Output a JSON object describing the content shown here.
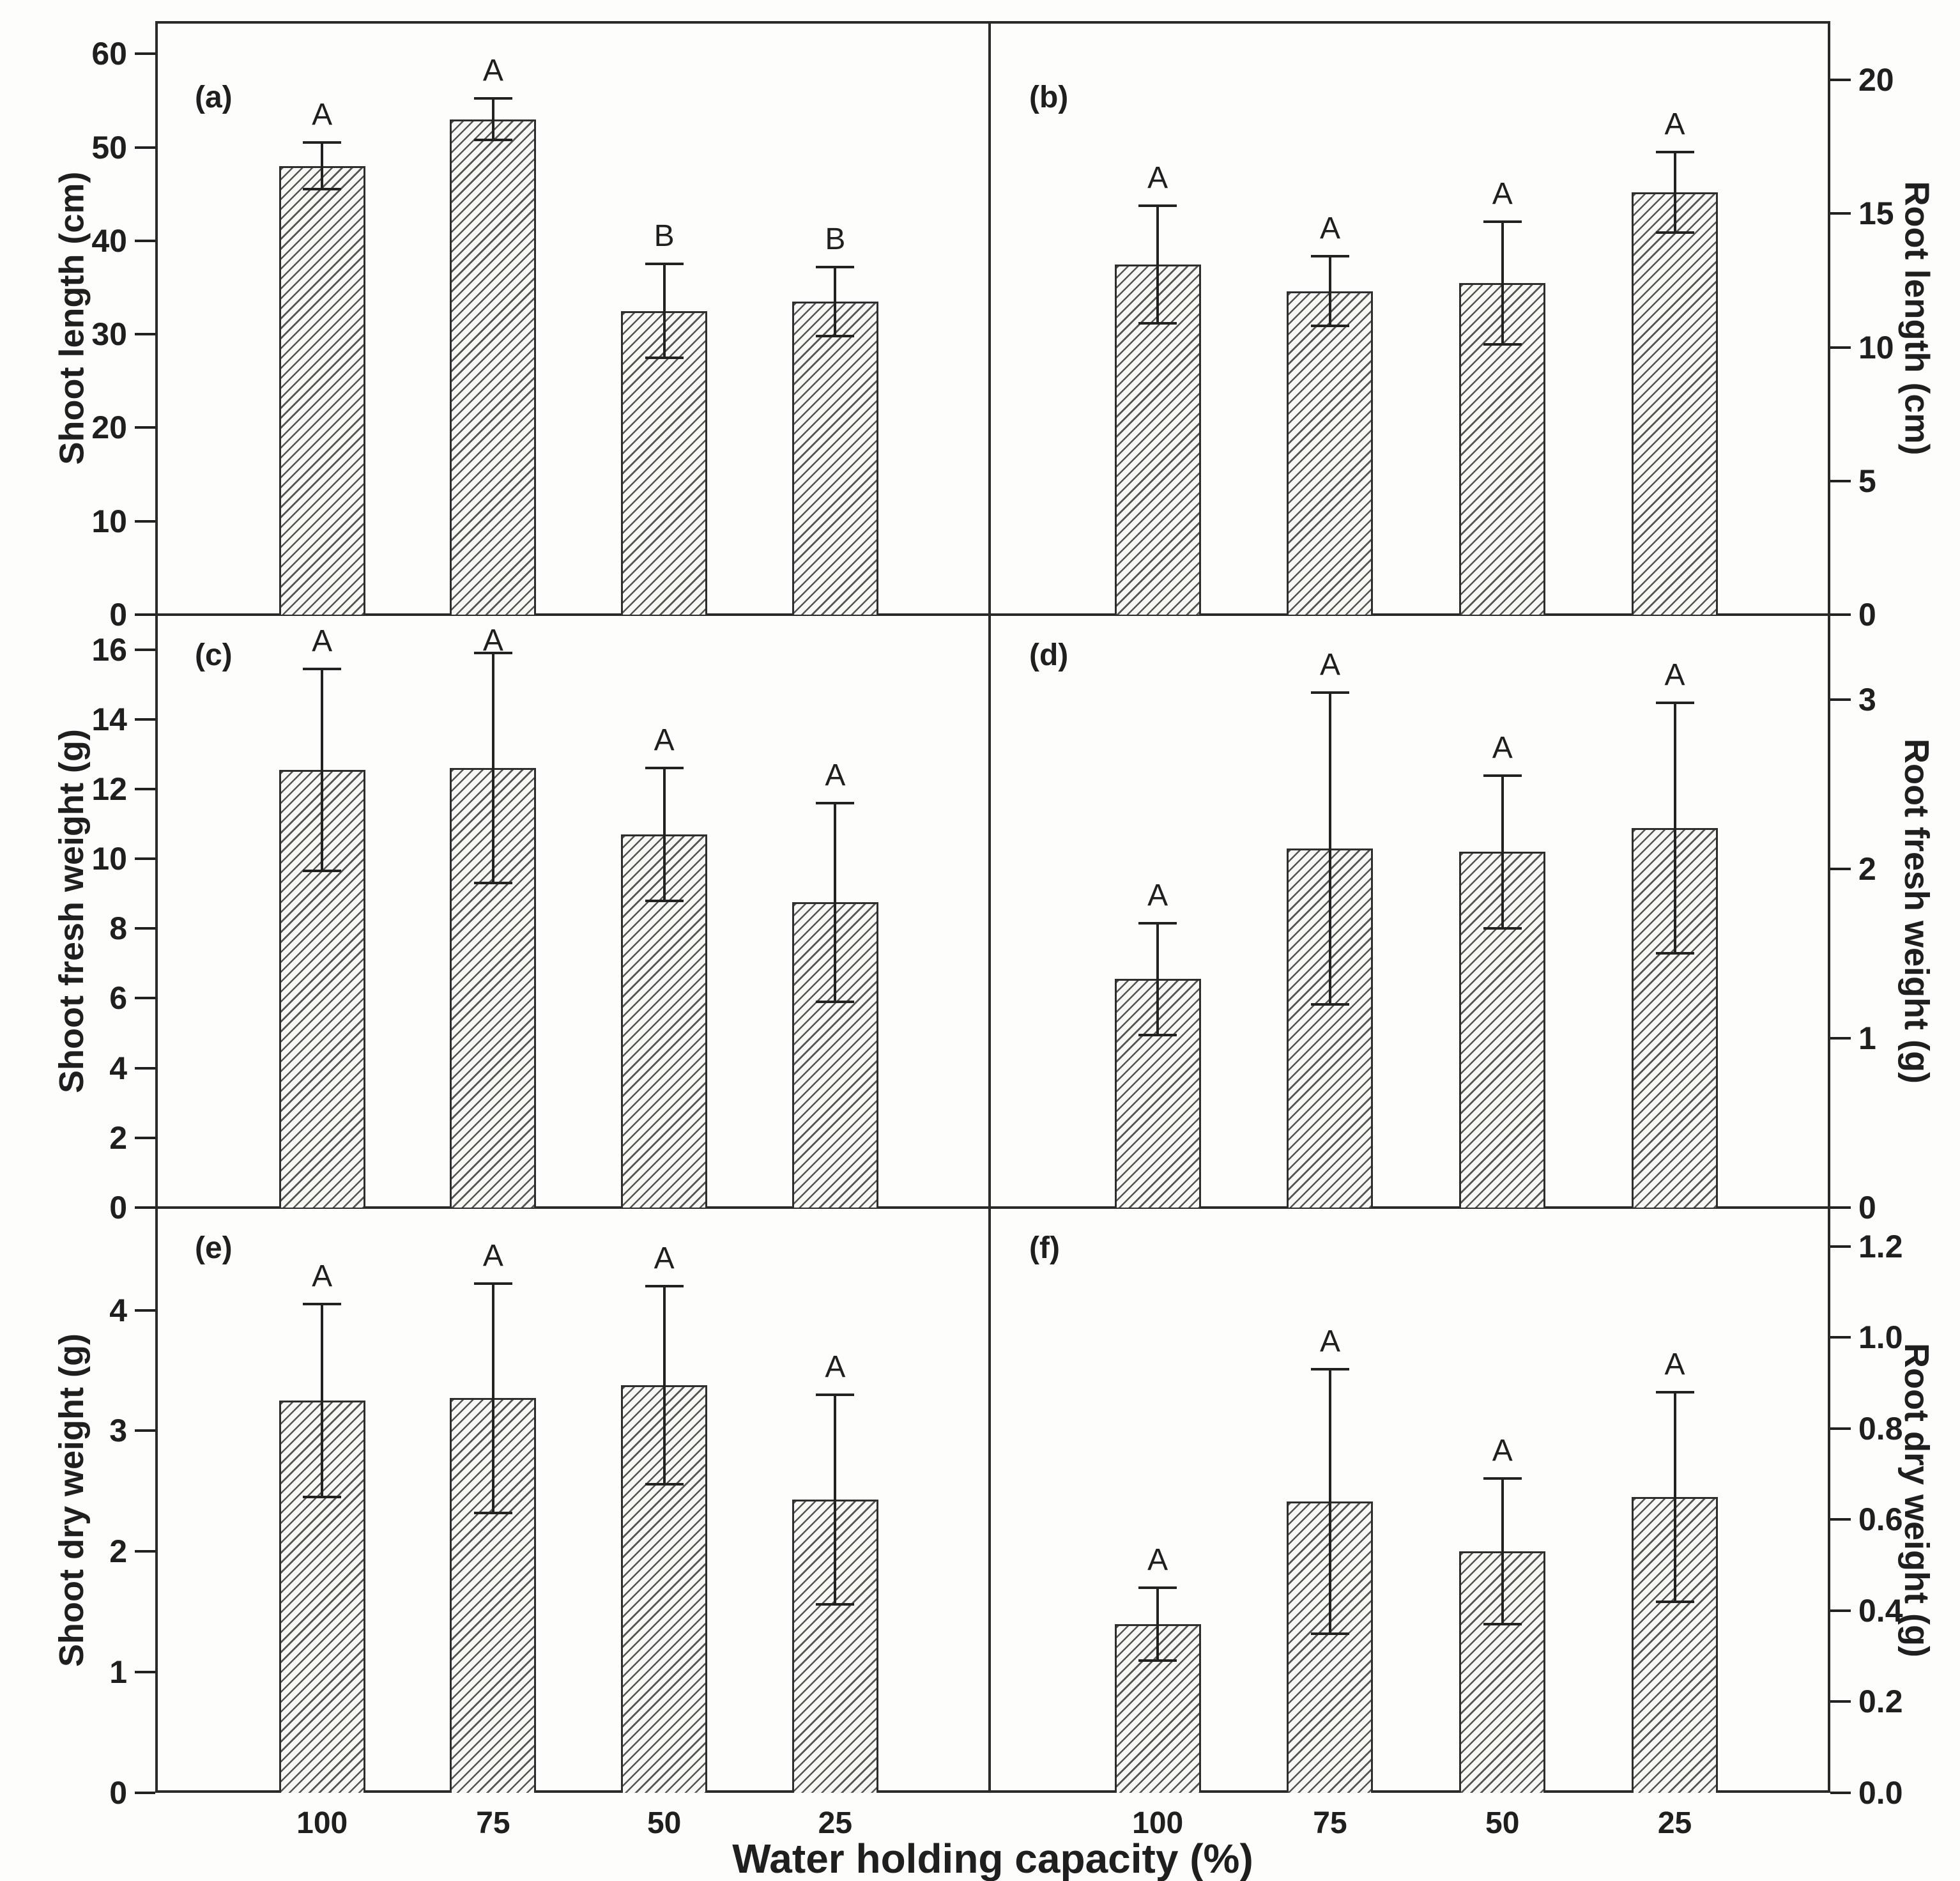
{
  "colors": {
    "background": "#fdfdfc",
    "ink": "#1f1f1f",
    "line": "#2a2a2a",
    "bar_fill": "#f8f8f5",
    "hatch": "#3e3e3e"
  },
  "chart_data": {
    "type": "bar",
    "categories": [
      "100",
      "75",
      "50",
      "25"
    ],
    "xlabel": "Water holding capacity (%)",
    "grid": false,
    "legend": "none",
    "bar_style": "diagonal-hatch, black edge, symmetric error bars with caps, significance letters above",
    "panels": [
      {
        "id": "a",
        "label": "(a)",
        "side": "left",
        "ylabel": "Shoot length (cm)",
        "ylim": [
          0,
          63.5
        ],
        "yticks": [
          0,
          10,
          20,
          30,
          40,
          50,
          60
        ],
        "ytick_labels": [
          "0",
          "10",
          "20",
          "30",
          "40",
          "50",
          "60"
        ],
        "values": [
          48,
          53,
          32.5,
          33.5
        ],
        "errors": [
          2.5,
          2.2,
          5.0,
          3.7
        ],
        "letters": [
          "A",
          "A",
          "B",
          "B"
        ]
      },
      {
        "id": "b",
        "label": "(b)",
        "side": "right",
        "ylabel": "Root length (cm)",
        "ylim": [
          0,
          22.2
        ],
        "yticks": [
          0,
          5,
          10,
          15,
          20
        ],
        "ytick_labels": [
          "0",
          "5",
          "10",
          "15",
          "20"
        ],
        "values": [
          13.1,
          12.1,
          12.4,
          15.8
        ],
        "errors": [
          2.2,
          1.3,
          2.3,
          1.5
        ],
        "letters": [
          "A",
          "A",
          "A",
          "A"
        ]
      },
      {
        "id": "c",
        "label": "(c)",
        "side": "left",
        "ylabel": "Shoot fresh weight (g)",
        "ylim": [
          0,
          17
        ],
        "yticks": [
          0,
          2,
          4,
          6,
          8,
          10,
          12,
          14,
          16
        ],
        "ytick_labels": [
          "0",
          "2",
          "4",
          "6",
          "8",
          "10",
          "12",
          "14",
          "16"
        ],
        "values": [
          12.55,
          12.6,
          10.7,
          8.75
        ],
        "errors": [
          2.9,
          3.3,
          1.9,
          2.85
        ],
        "letters": [
          "A",
          "A",
          "A",
          "A"
        ]
      },
      {
        "id": "d",
        "label": "(d)",
        "side": "right",
        "ylabel": "Root fresh weight (g)",
        "ylim": [
          0,
          3.5
        ],
        "yticks": [
          0,
          1,
          2,
          3
        ],
        "ytick_labels": [
          "0",
          "1",
          "2",
          "3"
        ],
        "values": [
          1.35,
          2.12,
          2.1,
          2.24
        ],
        "errors": [
          0.33,
          0.92,
          0.45,
          0.74
        ],
        "letters": [
          "A",
          "A",
          "A",
          "A"
        ]
      },
      {
        "id": "e",
        "label": "(e)",
        "side": "left",
        "ylabel": "Shoot dry weight (g)",
        "ylim": [
          0,
          4.85
        ],
        "yticks": [
          0,
          1,
          2,
          3,
          4
        ],
        "ytick_labels": [
          "0",
          "1",
          "2",
          "3",
          "4"
        ],
        "values": [
          3.25,
          3.27,
          3.38,
          2.43
        ],
        "errors": [
          0.8,
          0.95,
          0.82,
          0.87
        ],
        "letters": [
          "A",
          "A",
          "A",
          "A"
        ]
      },
      {
        "id": "f",
        "label": "(f)",
        "side": "right",
        "ylabel": "Root dry weight (g)",
        "ylim": [
          0,
          1.285
        ],
        "yticks": [
          0,
          0.2,
          0.4,
          0.6,
          0.8,
          1.0,
          1.2
        ],
        "ytick_labels": [
          "0.0",
          "0.2",
          "0.4",
          "0.6",
          "0.8",
          "1.0",
          "1.2"
        ],
        "values": [
          0.37,
          0.64,
          0.53,
          0.65
        ],
        "errors": [
          0.08,
          0.29,
          0.16,
          0.23
        ],
        "letters": [
          "A",
          "A",
          "A",
          "A"
        ]
      }
    ]
  }
}
